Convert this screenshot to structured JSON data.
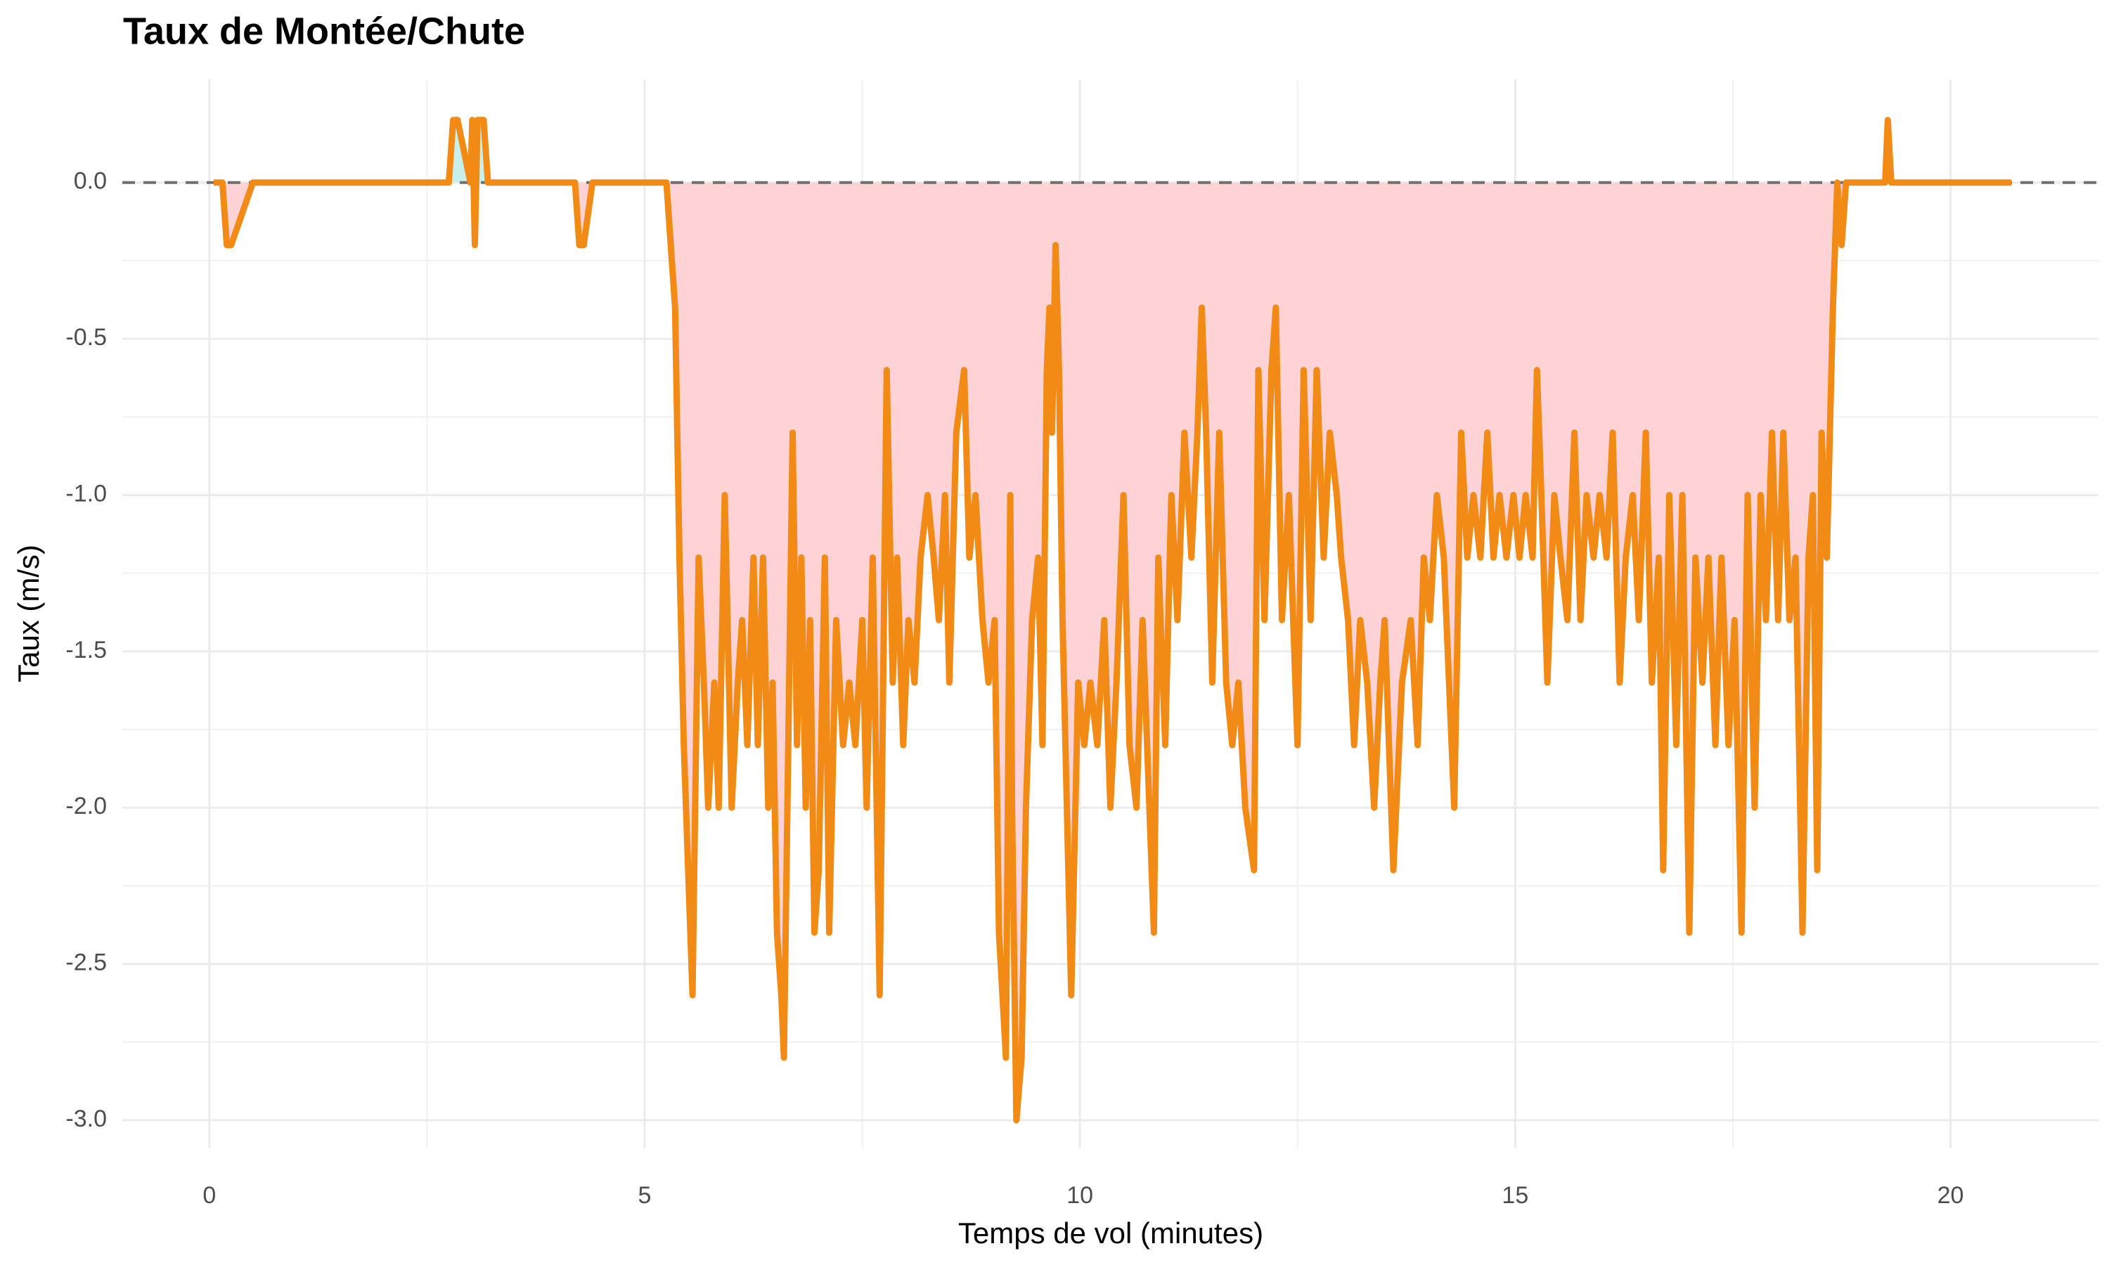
{
  "chart_data": {
    "type": "line",
    "title": "Taux de Montée/Chute",
    "x_label": "Temps de vol (minutes)",
    "y_label": "Taux (m/s)",
    "color": "#f28a16",
    "fill_negative": "#ffd3d5",
    "fill_positive": "#c8efea",
    "hline": 0,
    "grid": true,
    "xlim": [
      -1.0,
      21.7
    ],
    "ylim": [
      -3.09,
      0.33
    ],
    "xticks": [
      0,
      5,
      10,
      15,
      20
    ],
    "yticks": [
      {
        "value": -3,
        "label": "-3.0"
      },
      -2.5,
      {
        "value": -2,
        "label": "-2.0"
      },
      -1.5,
      {
        "value": -1,
        "label": "-1.0"
      },
      -0.5,
      {
        "value": 0,
        "label": "0.0"
      }
    ],
    "x": [
      0.05,
      0.15,
      0.2,
      0.25,
      0.5,
      2.75,
      2.8,
      2.85,
      3.0,
      3.02,
      3.05,
      3.08,
      3.15,
      3.2,
      4.2,
      4.25,
      4.3,
      4.4,
      5.25,
      5.35,
      5.4,
      5.45,
      5.5,
      5.55,
      5.62,
      5.68,
      5.73,
      5.8,
      5.85,
      5.92,
      6.0,
      6.07,
      6.12,
      6.18,
      6.25,
      6.3,
      6.36,
      6.42,
      6.47,
      6.52,
      6.57,
      6.6,
      6.65,
      6.7,
      6.75,
      6.8,
      6.85,
      6.9,
      6.95,
      7.0,
      7.07,
      7.12,
      7.2,
      7.28,
      7.35,
      7.42,
      7.5,
      7.55,
      7.62,
      7.7,
      7.78,
      7.85,
      7.9,
      7.97,
      8.03,
      8.1,
      8.17,
      8.25,
      8.32,
      8.38,
      8.45,
      8.5,
      8.58,
      8.67,
      8.73,
      8.8,
      8.88,
      8.95,
      9.02,
      9.07,
      9.15,
      9.2,
      9.22,
      9.27,
      9.33,
      9.38,
      9.45,
      9.52,
      9.57,
      9.62,
      9.65,
      9.68,
      9.72,
      9.76,
      9.8,
      9.9,
      9.98,
      10.05,
      10.12,
      10.2,
      10.28,
      10.35,
      10.42,
      10.5,
      10.57,
      10.65,
      10.72,
      10.85,
      10.9,
      10.98,
      11.05,
      11.12,
      11.2,
      11.28,
      11.35,
      11.4,
      11.45,
      11.52,
      11.6,
      11.68,
      11.75,
      11.82,
      11.9,
      12.0,
      12.05,
      12.12,
      12.2,
      12.25,
      12.32,
      12.4,
      12.5,
      12.57,
      12.65,
      12.72,
      12.8,
      12.87,
      12.95,
      13.0,
      13.08,
      13.15,
      13.22,
      13.3,
      13.38,
      13.45,
      13.5,
      13.6,
      13.7,
      13.8,
      13.88,
      13.95,
      14.02,
      14.1,
      14.18,
      14.3,
      14.38,
      14.45,
      14.52,
      14.6,
      14.68,
      14.75,
      14.82,
      14.9,
      14.98,
      15.05,
      15.12,
      15.2,
      15.25,
      15.3,
      15.37,
      15.45,
      15.52,
      15.6,
      15.68,
      15.75,
      15.82,
      15.9,
      15.97,
      16.05,
      16.12,
      16.2,
      16.27,
      16.35,
      16.42,
      16.5,
      16.57,
      16.65,
      16.7,
      16.77,
      16.85,
      16.92,
      17.0,
      17.07,
      17.15,
      17.22,
      17.3,
      17.37,
      17.45,
      17.52,
      17.6,
      17.67,
      17.75,
      17.82,
      17.88,
      17.95,
      18.02,
      18.08,
      18.15,
      18.22,
      18.3,
      18.37,
      18.42,
      18.47,
      18.52,
      18.58,
      18.65,
      18.7,
      18.75,
      18.8,
      19.25,
      19.28,
      19.32,
      20.7
    ],
    "values": [
      0,
      0,
      -0.2,
      -0.2,
      0,
      0,
      0.2,
      0.2,
      0,
      0.2,
      -0.2,
      0.2,
      0.2,
      0,
      0,
      -0.2,
      -0.2,
      0,
      0,
      -0.4,
      -1.2,
      -1.8,
      -2.2,
      -2.6,
      -1.2,
      -1.6,
      -2.0,
      -1.6,
      -2.0,
      -1.0,
      -2.0,
      -1.6,
      -1.4,
      -1.8,
      -1.2,
      -1.8,
      -1.2,
      -2.0,
      -1.6,
      -2.4,
      -2.6,
      -2.8,
      -1.8,
      -0.8,
      -1.8,
      -1.2,
      -2.0,
      -1.4,
      -2.4,
      -2.2,
      -1.2,
      -2.4,
      -1.4,
      -1.8,
      -1.6,
      -1.8,
      -1.4,
      -2.0,
      -1.2,
      -2.6,
      -0.6,
      -1.6,
      -1.2,
      -1.8,
      -1.4,
      -1.6,
      -1.2,
      -1.0,
      -1.2,
      -1.4,
      -1.0,
      -1.6,
      -0.8,
      -0.6,
      -1.2,
      -1.0,
      -1.4,
      -1.6,
      -1.4,
      -2.4,
      -2.8,
      -1.0,
      -2.0,
      -3.0,
      -2.8,
      -2.0,
      -1.4,
      -1.2,
      -1.8,
      -0.6,
      -0.4,
      -0.8,
      -0.2,
      -0.6,
      -1.4,
      -2.6,
      -1.6,
      -1.8,
      -1.6,
      -1.8,
      -1.4,
      -2.0,
      -1.6,
      -1.0,
      -1.8,
      -2.0,
      -1.4,
      -2.4,
      -1.2,
      -1.8,
      -1.0,
      -1.4,
      -0.8,
      -1.2,
      -0.8,
      -0.4,
      -0.8,
      -1.6,
      -0.8,
      -1.6,
      -1.8,
      -1.6,
      -2.0,
      -2.2,
      -0.6,
      -1.4,
      -0.6,
      -0.4,
      -1.4,
      -1.0,
      -1.8,
      -0.6,
      -1.4,
      -0.6,
      -1.2,
      -0.8,
      -1.0,
      -1.2,
      -1.4,
      -1.8,
      -1.4,
      -1.6,
      -2.0,
      -1.6,
      -1.4,
      -2.2,
      -1.6,
      -1.4,
      -1.8,
      -1.2,
      -1.4,
      -1.0,
      -1.2,
      -2.0,
      -0.8,
      -1.2,
      -1.0,
      -1.2,
      -0.8,
      -1.2,
      -1.0,
      -1.2,
      -1.0,
      -1.2,
      -1.0,
      -1.2,
      -0.6,
      -1.0,
      -1.6,
      -1.0,
      -1.2,
      -1.4,
      -0.8,
      -1.4,
      -1.0,
      -1.2,
      -1.0,
      -1.2,
      -0.8,
      -1.6,
      -1.2,
      -1.0,
      -1.4,
      -0.8,
      -1.6,
      -1.2,
      -2.2,
      -1.0,
      -1.8,
      -1.0,
      -2.4,
      -1.2,
      -1.6,
      -1.2,
      -1.8,
      -1.2,
      -1.8,
      -1.4,
      -2.4,
      -1.0,
      -2.0,
      -1.0,
      -1.4,
      -0.8,
      -1.4,
      -0.8,
      -1.4,
      -1.2,
      -2.4,
      -1.2,
      -1.0,
      -2.2,
      -0.8,
      -1.2,
      -0.4,
      0,
      -0.2,
      0,
      0,
      0.2,
      0,
      0
    ]
  }
}
